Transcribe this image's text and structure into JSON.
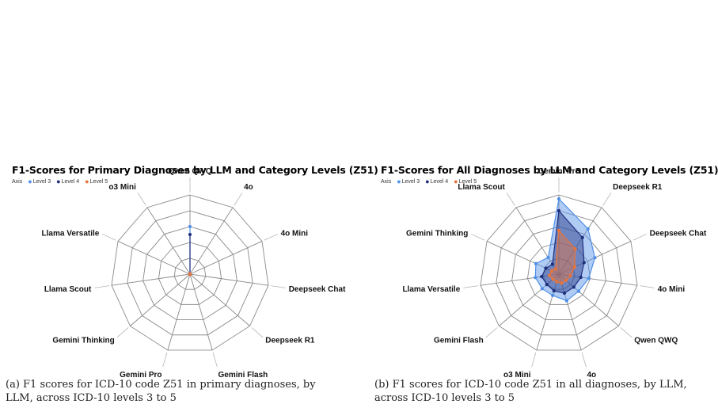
{
  "chart_data": [
    {
      "type": "radar",
      "title": "F1-Scores for Primary Diagnoses by LLM and Category Levels (Z51)",
      "legend": {
        "label": "Axis",
        "placement": "top-left"
      },
      "categories": [
        "Qwen QWQ",
        "4o",
        "4o Mini",
        "Deepseek Chat",
        "Deepseek R1",
        "Gemini Flash",
        "Gemini Pro",
        "Gemini Thinking",
        "Llama Scout",
        "Llama Versatile",
        "o3 Mini"
      ],
      "rlim": [
        0,
        1
      ],
      "rings": 5,
      "series": [
        {
          "name": "Level 3",
          "color": "#4f8fe8",
          "values": [
            0.6,
            0,
            0,
            0,
            0,
            0,
            0,
            0,
            0,
            0,
            0
          ]
        },
        {
          "name": "Level 4",
          "color": "#1f2f7f",
          "values": [
            0.5,
            0,
            0,
            0,
            0,
            0,
            0,
            0,
            0,
            0,
            0
          ]
        },
        {
          "name": "Level 5",
          "color": "#e8743b",
          "values": [
            0,
            0,
            0,
            0,
            0,
            0,
            0,
            0,
            0,
            0,
            0
          ]
        }
      ]
    },
    {
      "type": "radar",
      "title": "F1-Scores for All Diagnoses by LLM and Category Levels (Z51)",
      "legend": {
        "label": "Axis",
        "placement": "top-left"
      },
      "categories": [
        "Gemini Pro",
        "Deepseek R1",
        "Deepseek Chat",
        "4o Mini",
        "Qwen QWQ",
        "4o",
        "o3 Mini",
        "Gemini Flash",
        "Llama Versatile",
        "Gemini Thinking",
        "Llama Scout"
      ],
      "rlim": [
        0,
        1
      ],
      "rings": 5,
      "series": [
        {
          "name": "Level 3",
          "color": "#4f8fe8",
          "values": [
            0.95,
            0.68,
            0.5,
            0.38,
            0.33,
            0.35,
            0.28,
            0.28,
            0.3,
            0.32,
            0.25
          ]
        },
        {
          "name": "Level 4",
          "color": "#1f2f7f",
          "values": [
            0.8,
            0.55,
            0.35,
            0.28,
            0.25,
            0.25,
            0.22,
            0.2,
            0.22,
            0.18,
            0.15
          ]
        },
        {
          "name": "Level 5",
          "color": "#e8743b",
          "values": [
            0.55,
            0.38,
            0.22,
            0.15,
            0.12,
            0.12,
            0.1,
            0.1,
            0.12,
            0.1,
            0.08
          ]
        }
      ]
    }
  ],
  "captions": [
    "(a) F1 scores for ICD-10 code Z51 in primary diagnoses, by LLM, across ICD-10 levels 3 to 5",
    "(b) F1 scores for ICD-10 code Z51 in all diagnoses, by LLM, across ICD-10 levels 3 to 5"
  ]
}
